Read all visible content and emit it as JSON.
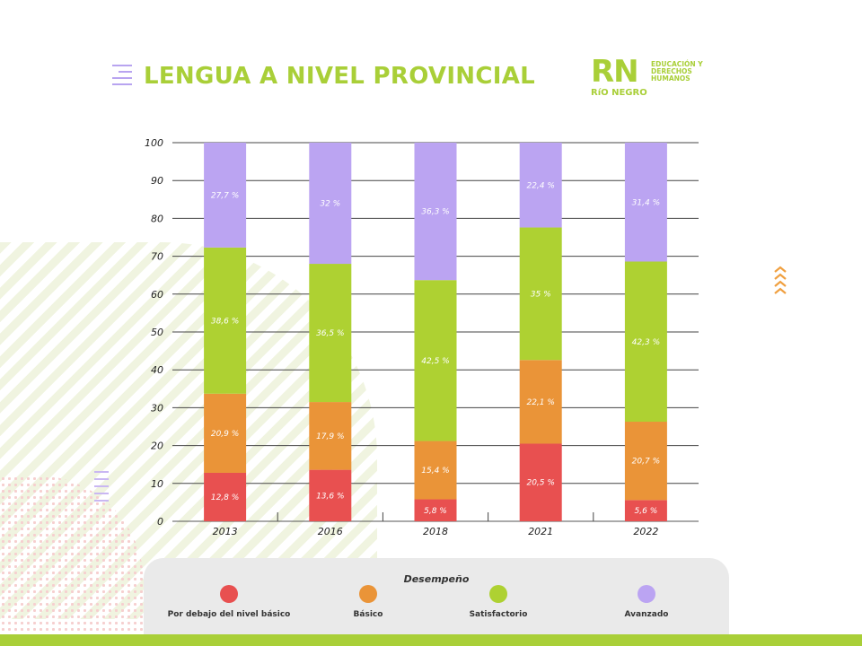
{
  "header": {
    "title": "LENGUA A NIVEL PROVINCIAL",
    "logo_mark": "RN",
    "logo_sub": "RíO NEGRO",
    "logo_text": "EDUCACIÓN Y DERECHOS HUMANOS"
  },
  "chart_data": {
    "type": "bar",
    "stacked": true,
    "categories": [
      "2013",
      "2016",
      "2018",
      "2021",
      "2022"
    ],
    "ylim": [
      0,
      100
    ],
    "yticks": [
      0,
      10,
      20,
      30,
      40,
      50,
      60,
      70,
      80,
      90,
      100
    ],
    "series": [
      {
        "name": "Por debajo del nivel básico",
        "color": "#e85050",
        "values": [
          12.8,
          13.6,
          5.8,
          20.5,
          5.6
        ],
        "labels": [
          "12,8 %",
          "13,6 %",
          "5,8 %",
          "20,5 %",
          "5,6 %"
        ]
      },
      {
        "name": "Básico",
        "color": "#ea9438",
        "values": [
          20.9,
          17.9,
          15.4,
          22.1,
          20.7
        ],
        "labels": [
          "20,9 %",
          "17,9 %",
          "15,4 %",
          "22,1 %",
          "20,7 %"
        ]
      },
      {
        "name": "Satisfactorio",
        "color": "#aed132",
        "values": [
          38.6,
          36.5,
          42.5,
          35,
          42.3
        ],
        "labels": [
          "38,6 %",
          "36,5 %",
          "42,5 %",
          "35 %",
          "42,3 %"
        ]
      },
      {
        "name": "Avanzado",
        "color": "#bba4f2",
        "values": [
          27.7,
          32,
          36.3,
          22.4,
          31.4
        ],
        "labels": [
          "27,7 %",
          "32 %",
          "36,3 %",
          "22,4 %",
          "31,4 %"
        ]
      }
    ],
    "legend_title": "Desempeño",
    "legend_position": "bottom",
    "grid": true
  }
}
